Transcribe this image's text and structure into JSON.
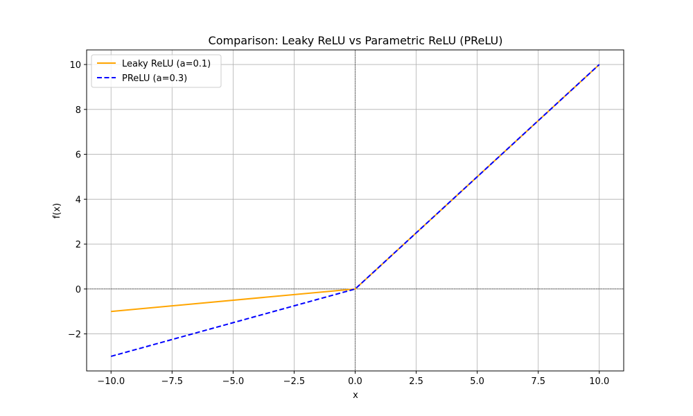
{
  "chart_data": {
    "type": "line",
    "title": "Comparison: Leaky ReLU vs Parametric ReLU (PReLU)",
    "xlabel": "x",
    "ylabel": "f(x)",
    "xlim": [
      -11,
      11
    ],
    "ylim": [
      -3.65,
      10.65
    ],
    "xticks": [
      -10.0,
      -7.5,
      -5.0,
      -2.5,
      0.0,
      2.5,
      5.0,
      7.5,
      10.0
    ],
    "xtick_labels": [
      "−10.0",
      "−7.5",
      "−5.0",
      "−2.5",
      "0.0",
      "2.5",
      "5.0",
      "7.5",
      "10.0"
    ],
    "yticks": [
      -2,
      0,
      2,
      4,
      6,
      8,
      10
    ],
    "ytick_labels": [
      "−2",
      "0",
      "2",
      "4",
      "6",
      "8",
      "10"
    ],
    "grid": true,
    "reference_lines": {
      "x": 0,
      "y": 0
    },
    "legend_position": "upper-left",
    "series": [
      {
        "name": "Leaky ReLU (a=0.1)",
        "color": "#ffa500",
        "style": "solid",
        "x": [
          -10,
          0,
          10
        ],
        "y": [
          -1,
          0,
          10
        ]
      },
      {
        "name": "PReLU (a=0.3)",
        "color": "#0000ff",
        "style": "dashed",
        "x": [
          -10,
          0,
          10
        ],
        "y": [
          -3,
          0,
          10
        ]
      }
    ]
  }
}
